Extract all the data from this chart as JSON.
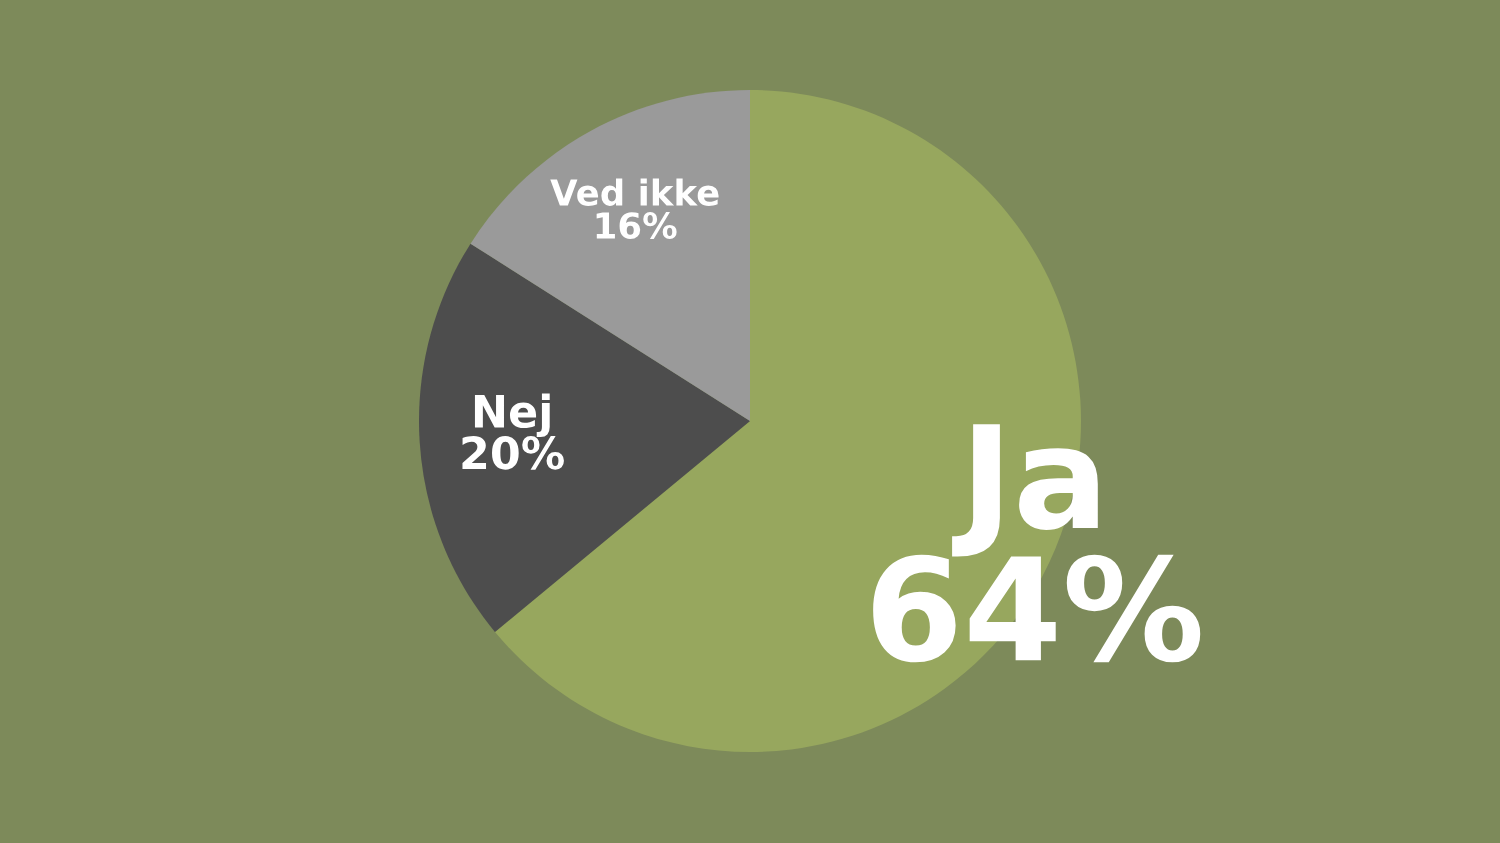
{
  "chart_data": {
    "type": "pie",
    "categories": [
      "Ja",
      "Nej",
      "Ved ikke"
    ],
    "values": [
      64,
      20,
      16
    ],
    "value_labels": [
      "64%",
      "20%",
      "16%"
    ],
    "colors": [
      "#97a75e",
      "#4d4d4d",
      "#9a9a9a"
    ],
    "legend": false
  }
}
